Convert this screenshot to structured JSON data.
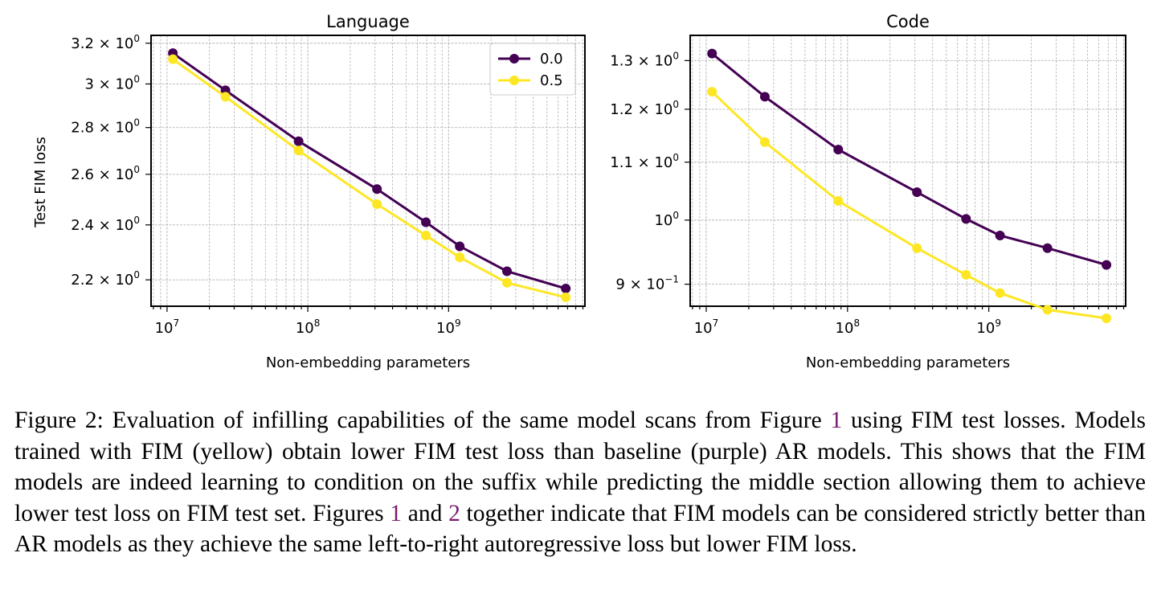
{
  "chart_data": [
    {
      "type": "line",
      "title": "Language",
      "xlabel": "Non-embedding parameters",
      "ylabel": "Test FIM loss",
      "xscale": "log",
      "yscale": "log",
      "xlim": [
        7700000,
        9300000000
      ],
      "ylim": [
        2.11,
        3.24
      ],
      "grid": true,
      "legend": "top-right",
      "x": [
        11000000,
        26000000,
        86000000,
        310000000,
        690000000,
        1200000000,
        2600000000,
        6800000000
      ],
      "series": [
        {
          "name": "0.0",
          "color": "#440154",
          "values": [
            3.15,
            2.97,
            2.74,
            2.54,
            2.41,
            2.32,
            2.23,
            2.17
          ]
        },
        {
          "name": "0.5",
          "color": "#fde725",
          "values": [
            3.12,
            2.94,
            2.7,
            2.48,
            2.36,
            2.28,
            2.19,
            2.14
          ]
        }
      ],
      "yticks": [
        {
          "value": 2.2,
          "base": "2.2 × 10",
          "exp": "0"
        },
        {
          "value": 2.4,
          "base": "2.4 × 10",
          "exp": "0"
        },
        {
          "value": 2.6,
          "base": "2.6 × 10",
          "exp": "0"
        },
        {
          "value": 2.8,
          "base": "2.8 × 10",
          "exp": "0"
        },
        {
          "value": 3.0,
          "base": "3 × 10",
          "exp": "0"
        },
        {
          "value": 3.2,
          "base": "3.2 × 10",
          "exp": "0"
        }
      ],
      "xticks": [
        {
          "value": 10000000,
          "base": "10",
          "exp": "7"
        },
        {
          "value": 100000000,
          "base": "10",
          "exp": "8"
        },
        {
          "value": 1000000000,
          "base": "10",
          "exp": "9"
        }
      ]
    },
    {
      "type": "line",
      "title": "Code",
      "xlabel": "Non-embedding parameters",
      "ylabel": "",
      "xscale": "log",
      "yscale": "log",
      "xlim": [
        7700000,
        9300000000
      ],
      "ylim": [
        0.868,
        1.355
      ],
      "grid": true,
      "legend": "",
      "x": [
        11000000,
        26000000,
        86000000,
        310000000,
        690000000,
        1200000000,
        2600000000,
        6800000000
      ],
      "series": [
        {
          "name": "0.0",
          "color": "#440154",
          "values": [
            1.315,
            1.225,
            1.123,
            1.047,
            1.002,
            0.975,
            0.955,
            0.929
          ]
        },
        {
          "name": "0.5",
          "color": "#fde725",
          "values": [
            1.235,
            1.137,
            1.032,
            0.955,
            0.914,
            0.887,
            0.863,
            0.851
          ]
        }
      ],
      "yticks": [
        {
          "value": 0.9,
          "base": "9 × 10",
          "exp": "−1"
        },
        {
          "value": 1.0,
          "base": "10",
          "exp": "0"
        },
        {
          "value": 1.1,
          "base": "1.1 × 10",
          "exp": "0"
        },
        {
          "value": 1.2,
          "base": "1.2 × 10",
          "exp": "0"
        },
        {
          "value": 1.3,
          "base": "1.3 × 10",
          "exp": "0"
        }
      ],
      "xticks": [
        {
          "value": 10000000,
          "base": "10",
          "exp": "7"
        },
        {
          "value": 100000000,
          "base": "10",
          "exp": "8"
        },
        {
          "value": 1000000000,
          "base": "10",
          "exp": "9"
        }
      ]
    }
  ],
  "caption": {
    "prefix": "Figure 2: Evaluation of infilling capabilities of the same model scans from Figure ",
    "ref1": "1",
    "mid1": " using FIM test losses. Models trained with FIM (yellow) obtain lower FIM test loss than baseline (purple) AR models. This shows that the FIM models are indeed learning to condition on the suffix while predicting the middle section allowing them to achieve lower test loss on FIM test set. Figures ",
    "ref2": "1",
    "mid2": " and ",
    "ref3": "2",
    "suffix": " together indicate that FIM models can be considered strictly better than AR models as they achieve the same left-to-right autoregressive loss but lower FIM loss."
  }
}
